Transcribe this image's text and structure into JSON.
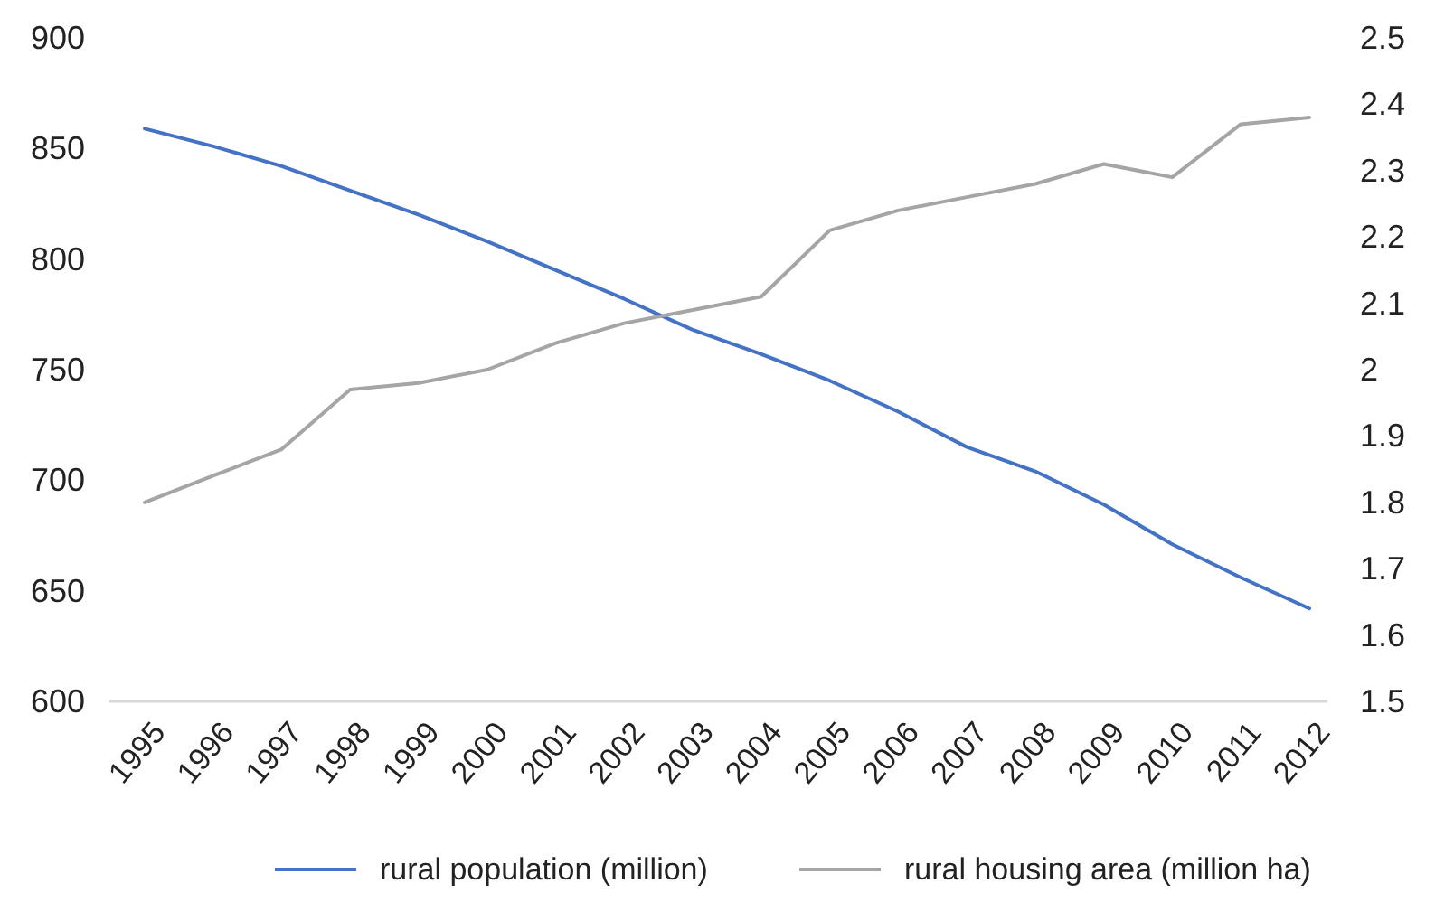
{
  "chart_data": {
    "type": "line",
    "categories": [
      "1995",
      "1996",
      "1997",
      "1998",
      "1999",
      "2000",
      "2001",
      "2002",
      "2003",
      "2004",
      "2005",
      "2006",
      "2007",
      "2008",
      "2009",
      "2010",
      "2011",
      "2012"
    ],
    "series": [
      {
        "name": "rural population (million)",
        "color": "#4472c4",
        "values": [
          859,
          851,
          842,
          831,
          820,
          808,
          795,
          782,
          768,
          757,
          745,
          731,
          715,
          704,
          689,
          671,
          656,
          642
        ]
      },
      {
        "name": "rural housing area (million ha)",
        "color": "#a5a5a5",
        "axis": "y2",
        "values": [
          1.8,
          1.84,
          1.88,
          1.97,
          1.98,
          2.0,
          2.04,
          2.07,
          2.09,
          2.11,
          2.21,
          2.24,
          2.26,
          2.28,
          2.31,
          2.29,
          2.37,
          2.38
        ]
      }
    ],
    "ylim": [
      600,
      900
    ],
    "yticks": [
      600,
      650,
      700,
      750,
      800,
      850,
      900
    ],
    "y2lim": [
      1.5,
      2.5
    ],
    "y2ticks": [
      1.5,
      1.6,
      1.7,
      1.8,
      1.9,
      2,
      2.1,
      2.2,
      2.3,
      2.4,
      2.5
    ],
    "grid": false,
    "legend": "bottom",
    "marker": "none",
    "line_style": "solid"
  }
}
